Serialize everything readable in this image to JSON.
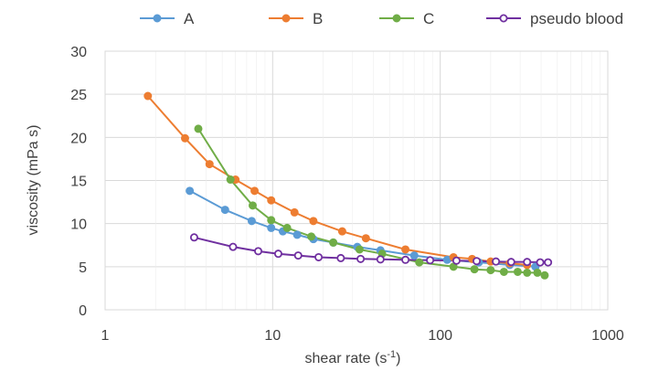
{
  "chart_data": {
    "type": "scatter",
    "xlabel": "shear rate (s",
    "xlabel_sup": "-1",
    "xlabel_close": ")",
    "ylabel": "viscosity (mPa s)",
    "xscale": "log",
    "xlim": [
      1,
      1000
    ],
    "ylim": [
      0,
      30
    ],
    "x_ticks": [
      1,
      10,
      100,
      1000
    ],
    "x_tick_labels": [
      "1",
      "10",
      "100",
      "1000"
    ],
    "y_ticks": [
      0,
      5,
      10,
      15,
      20,
      25,
      30
    ],
    "y_tick_labels": [
      "0",
      "5",
      "10",
      "15",
      "20",
      "25",
      "30"
    ],
    "grid": true,
    "legend_position": "top",
    "series": [
      {
        "name": "A",
        "color": "#5b9bd5",
        "marker": "filled-circle",
        "x": [
          3.2,
          5.2,
          7.5,
          9.8,
          11.5,
          14,
          17.5,
          23,
          32,
          44,
          70,
          110,
          170,
          260,
          370
        ],
        "y": [
          13.8,
          11.6,
          10.3,
          9.5,
          9.1,
          8.7,
          8.2,
          7.8,
          7.3,
          6.9,
          6.3,
          5.8,
          5.5,
          5.2,
          5.0
        ]
      },
      {
        "name": "B",
        "color": "#ed7d31",
        "marker": "filled-circle",
        "x": [
          1.8,
          3.0,
          4.2,
          6.0,
          7.8,
          9.8,
          13.5,
          17.5,
          26,
          36,
          62,
          120,
          155,
          200,
          260,
          330
        ],
        "y": [
          24.8,
          19.9,
          16.9,
          15.1,
          13.8,
          12.7,
          11.3,
          10.3,
          9.1,
          8.3,
          7.0,
          6.1,
          5.9,
          5.6,
          5.4,
          5.2
        ]
      },
      {
        "name": "C",
        "color": "#70ad47",
        "marker": "filled-circle",
        "x": [
          3.6,
          5.6,
          7.6,
          9.8,
          12.2,
          17,
          23,
          33,
          45,
          75,
          120,
          160,
          200,
          240,
          290,
          330,
          380,
          420
        ],
        "y": [
          21.0,
          15.1,
          12.1,
          10.4,
          9.5,
          8.5,
          7.8,
          7.0,
          6.5,
          5.5,
          5.0,
          4.7,
          4.6,
          4.4,
          4.4,
          4.3,
          4.3,
          4.0
        ]
      },
      {
        "name": "pseudo blood",
        "color": "#7030a0",
        "marker": "open-circle",
        "x": [
          3.4,
          5.8,
          8.2,
          10.8,
          14.2,
          18.8,
          25.5,
          33.5,
          44,
          62,
          87,
          125,
          165,
          215,
          265,
          330,
          395,
          440
        ],
        "y": [
          8.4,
          7.3,
          6.8,
          6.5,
          6.3,
          6.1,
          6.0,
          5.9,
          5.85,
          5.8,
          5.75,
          5.7,
          5.65,
          5.6,
          5.55,
          5.55,
          5.5,
          5.5
        ]
      }
    ]
  }
}
